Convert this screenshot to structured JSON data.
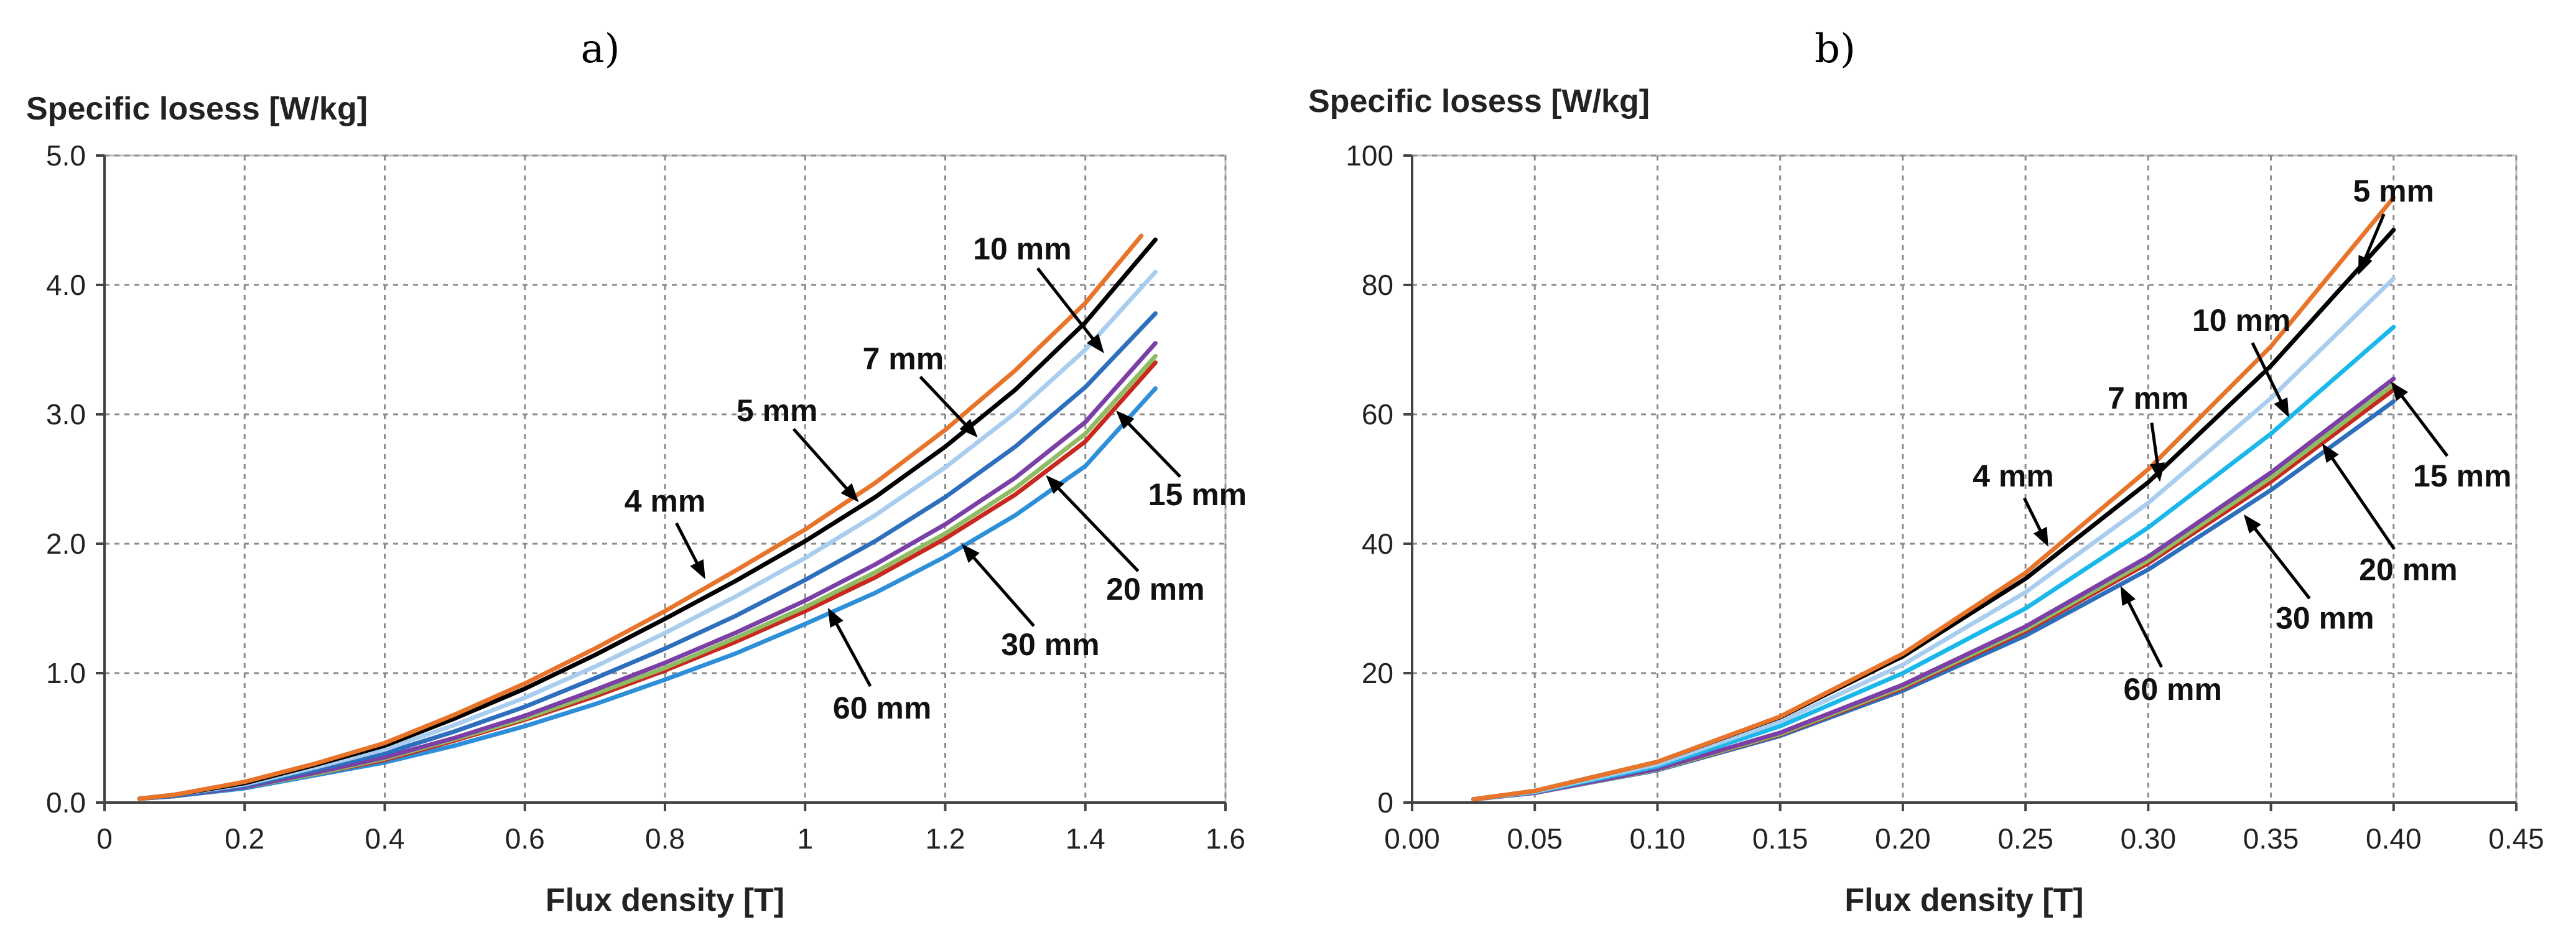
{
  "chart_data": [
    {
      "type": "line",
      "panel_label": "a)",
      "title": "",
      "ylabel": "Specific losess [W/kg]",
      "xlabel": "Flux density [T]",
      "xlim": [
        0,
        1.6
      ],
      "ylim": [
        0,
        5
      ],
      "xticks": [
        0,
        0.2,
        0.4,
        0.6,
        0.8,
        1,
        1.2,
        1.4,
        1.6
      ],
      "xtick_labels": [
        "0",
        "0.2",
        "0.4",
        "0.6",
        "0.8",
        "1",
        "1.2",
        "1.4",
        "1.6"
      ],
      "yticks": [
        0,
        1,
        2,
        3,
        4,
        5
      ],
      "ytick_labels": [
        "0.0",
        "1.0",
        "2.0",
        "3.0",
        "4.0",
        "5.0"
      ],
      "grid": true,
      "series": [
        {
          "name": "4 mm",
          "color": "#e8742a",
          "x": [
            0.05,
            0.1,
            0.2,
            0.3,
            0.4,
            0.5,
            0.6,
            0.7,
            0.8,
            0.9,
            1.0,
            1.1,
            1.2,
            1.3,
            1.4,
            1.48
          ],
          "y": [
            0.03,
            0.06,
            0.16,
            0.3,
            0.46,
            0.68,
            0.92,
            1.19,
            1.48,
            1.79,
            2.11,
            2.47,
            2.88,
            3.34,
            3.86,
            4.38
          ]
        },
        {
          "name": "5 mm",
          "color": "#000000",
          "x": [
            0.05,
            0.1,
            0.2,
            0.3,
            0.4,
            0.5,
            0.6,
            0.7,
            0.8,
            0.9,
            1.0,
            1.1,
            1.2,
            1.3,
            1.4,
            1.5
          ],
          "y": [
            0.03,
            0.06,
            0.15,
            0.29,
            0.44,
            0.65,
            0.88,
            1.14,
            1.42,
            1.71,
            2.02,
            2.36,
            2.75,
            3.19,
            3.71,
            4.35
          ]
        },
        {
          "name": "7 mm",
          "color": "#a8cdee",
          "x": [
            0.05,
            0.1,
            0.2,
            0.3,
            0.4,
            0.5,
            0.6,
            0.7,
            0.8,
            0.9,
            1.0,
            1.1,
            1.2,
            1.3,
            1.4,
            1.5
          ],
          "y": [
            0.03,
            0.06,
            0.14,
            0.27,
            0.41,
            0.6,
            0.81,
            1.05,
            1.31,
            1.59,
            1.89,
            2.22,
            2.59,
            3.01,
            3.5,
            4.1
          ]
        },
        {
          "name": "10 mm",
          "color": "#2e6fbd",
          "x": [
            0.05,
            0.1,
            0.2,
            0.3,
            0.4,
            0.5,
            0.6,
            0.7,
            0.8,
            0.9,
            1.0,
            1.1,
            1.2,
            1.3,
            1.4,
            1.5
          ],
          "y": [
            0.03,
            0.05,
            0.13,
            0.25,
            0.38,
            0.55,
            0.74,
            0.96,
            1.19,
            1.44,
            1.72,
            2.02,
            2.36,
            2.75,
            3.21,
            3.78
          ]
        },
        {
          "name": "15 mm",
          "color": "#7b3fa6",
          "x": [
            0.05,
            0.1,
            0.2,
            0.3,
            0.4,
            0.5,
            0.6,
            0.7,
            0.8,
            0.9,
            1.0,
            1.1,
            1.2,
            1.3,
            1.4,
            1.5
          ],
          "y": [
            0.03,
            0.05,
            0.12,
            0.23,
            0.35,
            0.5,
            0.67,
            0.87,
            1.08,
            1.31,
            1.56,
            1.84,
            2.15,
            2.51,
            2.94,
            3.55
          ]
        },
        {
          "name": "20 mm",
          "color": "#8fbc62",
          "x": [
            0.05,
            0.1,
            0.2,
            0.3,
            0.4,
            0.5,
            0.6,
            0.7,
            0.8,
            0.9,
            1.0,
            1.1,
            1.2,
            1.3,
            1.4,
            1.5
          ],
          "y": [
            0.03,
            0.05,
            0.12,
            0.22,
            0.34,
            0.49,
            0.65,
            0.84,
            1.04,
            1.27,
            1.51,
            1.78,
            2.08,
            2.43,
            2.85,
            3.45
          ]
        },
        {
          "name": "30 mm",
          "color": "#c9281e",
          "x": [
            0.05,
            0.1,
            0.2,
            0.3,
            0.4,
            0.5,
            0.6,
            0.7,
            0.8,
            0.9,
            1.0,
            1.1,
            1.2,
            1.3,
            1.4,
            1.5
          ],
          "y": [
            0.03,
            0.05,
            0.12,
            0.22,
            0.33,
            0.48,
            0.64,
            0.82,
            1.02,
            1.24,
            1.48,
            1.74,
            2.04,
            2.38,
            2.79,
            3.4
          ]
        },
        {
          "name": "60 mm",
          "color": "#2d8fd8",
          "x": [
            0.05,
            0.1,
            0.2,
            0.3,
            0.4,
            0.5,
            0.6,
            0.7,
            0.8,
            0.9,
            1.0,
            1.1,
            1.2,
            1.3,
            1.4,
            1.5
          ],
          "y": [
            0.03,
            0.05,
            0.11,
            0.21,
            0.31,
            0.44,
            0.59,
            0.76,
            0.95,
            1.15,
            1.38,
            1.62,
            1.9,
            2.22,
            2.6,
            3.2
          ]
        }
      ],
      "annotations": [
        {
          "text": "4 mm",
          "x": 0.8,
          "y": 2.33,
          "arrow_to": [
            0.86,
            1.7
          ]
        },
        {
          "text": "5 mm",
          "x": 0.96,
          "y": 3.03,
          "arrow_to": [
            1.08,
            2.3
          ]
        },
        {
          "text": "7 mm",
          "x": 1.14,
          "y": 3.43,
          "arrow_to": [
            1.25,
            2.8
          ]
        },
        {
          "text": "10 mm",
          "x": 1.31,
          "y": 4.28,
          "arrow_to": [
            1.43,
            3.45
          ]
        },
        {
          "text": "15 mm",
          "x": 1.56,
          "y": 2.38,
          "arrow_to": [
            1.44,
            3.05
          ]
        },
        {
          "text": "20 mm",
          "x": 1.5,
          "y": 1.65,
          "arrow_to": [
            1.34,
            2.55
          ]
        },
        {
          "text": "30 mm",
          "x": 1.35,
          "y": 1.22,
          "arrow_to": [
            1.22,
            2.02
          ]
        },
        {
          "text": "60 mm",
          "x": 1.11,
          "y": 0.73,
          "arrow_to": [
            1.03,
            1.53
          ]
        }
      ]
    },
    {
      "type": "line",
      "panel_label": "b)",
      "title": "",
      "ylabel": "Specific losess [W/kg]",
      "xlabel": "Flux density [T]",
      "xlim": [
        0,
        0.45
      ],
      "ylim": [
        0,
        100
      ],
      "xticks": [
        0,
        0.05,
        0.1,
        0.15,
        0.2,
        0.25,
        0.3,
        0.35,
        0.4,
        0.45
      ],
      "xtick_labels": [
        "0.00",
        "0.05",
        "0.10",
        "0.15",
        "0.20",
        "0.25",
        "0.30",
        "0.35",
        "0.40",
        "0.45"
      ],
      "yticks": [
        0,
        20,
        40,
        60,
        80,
        100
      ],
      "ytick_labels": [
        "0",
        "20",
        "40",
        "60",
        "80",
        "100"
      ],
      "grid": true,
      "series": [
        {
          "name": "5 mm",
          "color": "#e8742a",
          "x": [
            0.025,
            0.05,
            0.1,
            0.15,
            0.2,
            0.25,
            0.3,
            0.35,
            0.4
          ],
          "y": [
            0.5,
            1.8,
            6.3,
            13.3,
            23.0,
            35.5,
            51.5,
            70.5,
            93.5
          ]
        },
        {
          "name": "4 mm",
          "color": "#000000",
          "x": [
            0.025,
            0.05,
            0.1,
            0.15,
            0.2,
            0.25,
            0.3,
            0.35,
            0.4
          ],
          "y": [
            0.5,
            1.8,
            6.3,
            13.2,
            22.6,
            34.6,
            49.5,
            67.5,
            88.5
          ]
        },
        {
          "name": "7 mm",
          "color": "#a8cdee",
          "x": [
            0.025,
            0.05,
            0.1,
            0.15,
            0.2,
            0.25,
            0.3,
            0.35,
            0.4
          ],
          "y": [
            0.5,
            1.7,
            5.9,
            12.5,
            21.3,
            32.5,
            46.3,
            62.5,
            81.0
          ]
        },
        {
          "name": "10 mm",
          "color": "#19b8ea",
          "x": [
            0.025,
            0.05,
            0.1,
            0.15,
            0.2,
            0.25,
            0.3,
            0.35,
            0.4
          ],
          "y": [
            0.5,
            1.6,
            5.6,
            11.8,
            20.0,
            30.0,
            42.5,
            57.0,
            73.5
          ]
        },
        {
          "name": "15 mm",
          "color": "#7b3fa6",
          "x": [
            0.025,
            0.05,
            0.1,
            0.15,
            0.2,
            0.25,
            0.3,
            0.35,
            0.4
          ],
          "y": [
            0.5,
            1.5,
            5.2,
            10.8,
            18.2,
            27.2,
            38.0,
            51.0,
            65.5
          ]
        },
        {
          "name": "20 mm",
          "color": "#8fbc62",
          "x": [
            0.025,
            0.05,
            0.1,
            0.15,
            0.2,
            0.25,
            0.3,
            0.35,
            0.4
          ],
          "y": [
            0.5,
            1.5,
            5.1,
            10.6,
            17.9,
            26.8,
            37.4,
            50.2,
            64.6
          ]
        },
        {
          "name": "30 mm",
          "color": "#c9281e",
          "x": [
            0.025,
            0.05,
            0.1,
            0.15,
            0.2,
            0.25,
            0.3,
            0.35,
            0.4
          ],
          "y": [
            0.5,
            1.5,
            5.1,
            10.5,
            17.7,
            26.5,
            37.0,
            49.6,
            63.8
          ]
        },
        {
          "name": "60 mm",
          "color": "#2e6fbd",
          "x": [
            0.025,
            0.05,
            0.1,
            0.15,
            0.2,
            0.25,
            0.3,
            0.35,
            0.4
          ],
          "y": [
            0.5,
            1.5,
            5.0,
            10.3,
            17.3,
            25.8,
            36.0,
            48.3,
            62.0
          ]
        }
      ],
      "annotations": [
        {
          "text": "5 mm",
          "x": 0.4,
          "y": 94.5,
          "arrow_to": [
            0.385,
            81
          ]
        },
        {
          "text": "10 mm",
          "x": 0.338,
          "y": 74.5,
          "arrow_to": [
            0.358,
            59
          ]
        },
        {
          "text": "7 mm",
          "x": 0.3,
          "y": 62.5,
          "arrow_to": [
            0.305,
            49
          ]
        },
        {
          "text": "4 mm",
          "x": 0.245,
          "y": 50.5,
          "arrow_to": [
            0.26,
            39
          ]
        },
        {
          "text": "15 mm",
          "x": 0.428,
          "y": 50.5,
          "arrow_to": [
            0.398,
            65.5
          ]
        },
        {
          "text": "20 mm",
          "x": 0.406,
          "y": 36.0,
          "arrow_to": [
            0.37,
            56
          ]
        },
        {
          "text": "30 mm",
          "x": 0.372,
          "y": 28.5,
          "arrow_to": [
            0.338,
            45
          ]
        },
        {
          "text": "60 mm",
          "x": 0.31,
          "y": 17.5,
          "arrow_to": [
            0.288,
            34
          ]
        }
      ]
    }
  ]
}
